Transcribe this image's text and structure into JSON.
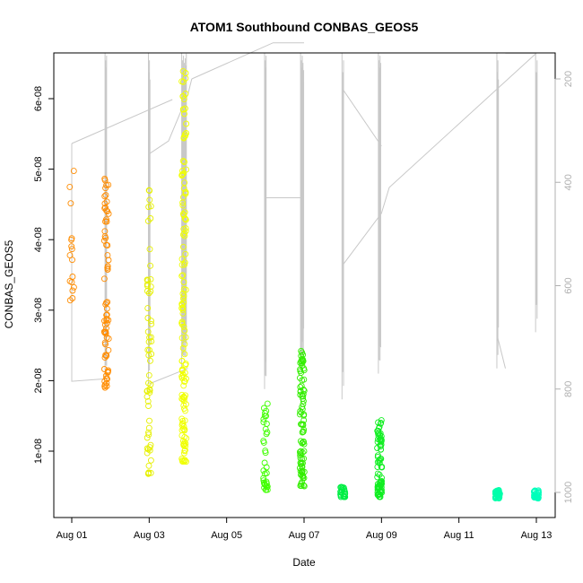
{
  "chart_data": {
    "type": "scatter",
    "title": "ATOM1 Southbound CONBAS_GEOS5",
    "xlabel": "Date",
    "ylabel": "CONBAS_GEOS5",
    "xlim": [
      "2016-07-31T18:00",
      "2016-08-13T12:00"
    ],
    "ylim": [
      2e-09,
      6.6e-08
    ],
    "y_ticks": [
      1e-08,
      2e-08,
      3e-08,
      4e-08,
      5e-08,
      6e-08
    ],
    "y_tick_labels": [
      "1e-08",
      "2e-08",
      "3e-08",
      "4e-08",
      "5e-08",
      "6e-08"
    ],
    "x_tick_labels": [
      "Aug 01",
      "Aug 03",
      "Aug 05",
      "Aug 07",
      "Aug 09",
      "Aug 11",
      "Aug 13"
    ],
    "y2_tick_labels": [
      "200",
      "400",
      "600",
      "800",
      "1000"
    ],
    "y2_ticks": [
      200,
      400,
      600,
      800,
      1000
    ],
    "y2_lim_reversed": [
      1050,
      150
    ],
    "point_colors": {
      "Aug 01": "#ff8c00",
      "Aug 02": "#ff8c00",
      "Aug 03": "#e6f000",
      "Aug 04": "#f0ff00",
      "Aug 06": "#40ff00",
      "Aug 07": "#33ee00",
      "Aug 08": "#00ee44",
      "Aug 09": "#11ee22",
      "Aug 12": "#00ffaa",
      "Aug 13": "#00ffbb"
    },
    "pressure_line_color": "#c8c8c8",
    "clusters": [
      {
        "day": 1.0,
        "ymin": 3.1e-08,
        "ymax": 5.05e-08,
        "color": "#ff8c00",
        "n": 16
      },
      {
        "day": 1.9,
        "ymin": 1.9e-08,
        "ymax": 4.9e-08,
        "color": "#ff8c00",
        "n": 70
      },
      {
        "day": 3.0,
        "ymin": 6.5e-09,
        "ymax": 4.75e-08,
        "color": "#e6f000",
        "n": 60
      },
      {
        "day": 3.9,
        "ymin": 8.5e-09,
        "ymax": 6.4e-08,
        "color": "#f0ff00",
        "n": 140
      },
      {
        "day": 6.0,
        "ymin": 4.5e-09,
        "ymax": 1.7e-08,
        "color": "#40ff00",
        "n": 35
      },
      {
        "day": 6.95,
        "ymin": 5e-09,
        "ymax": 2.45e-08,
        "color": "#33ee00",
        "n": 90
      },
      {
        "day": 8.0,
        "ymin": 3.5e-09,
        "ymax": 5e-09,
        "color": "#00ee44",
        "n": 25
      },
      {
        "day": 8.95,
        "ymin": 3.5e-09,
        "ymax": 1.5e-08,
        "color": "#11ee22",
        "n": 80
      },
      {
        "day": 12.0,
        "ymin": 3.3e-09,
        "ymax": 4.5e-09,
        "color": "#00ffaa",
        "n": 40
      },
      {
        "day": 13.0,
        "ymin": 3.3e-09,
        "ymax": 4.5e-09,
        "color": "#00ffbb",
        "n": 30
      }
    ],
    "grid": false,
    "legend": "none"
  }
}
